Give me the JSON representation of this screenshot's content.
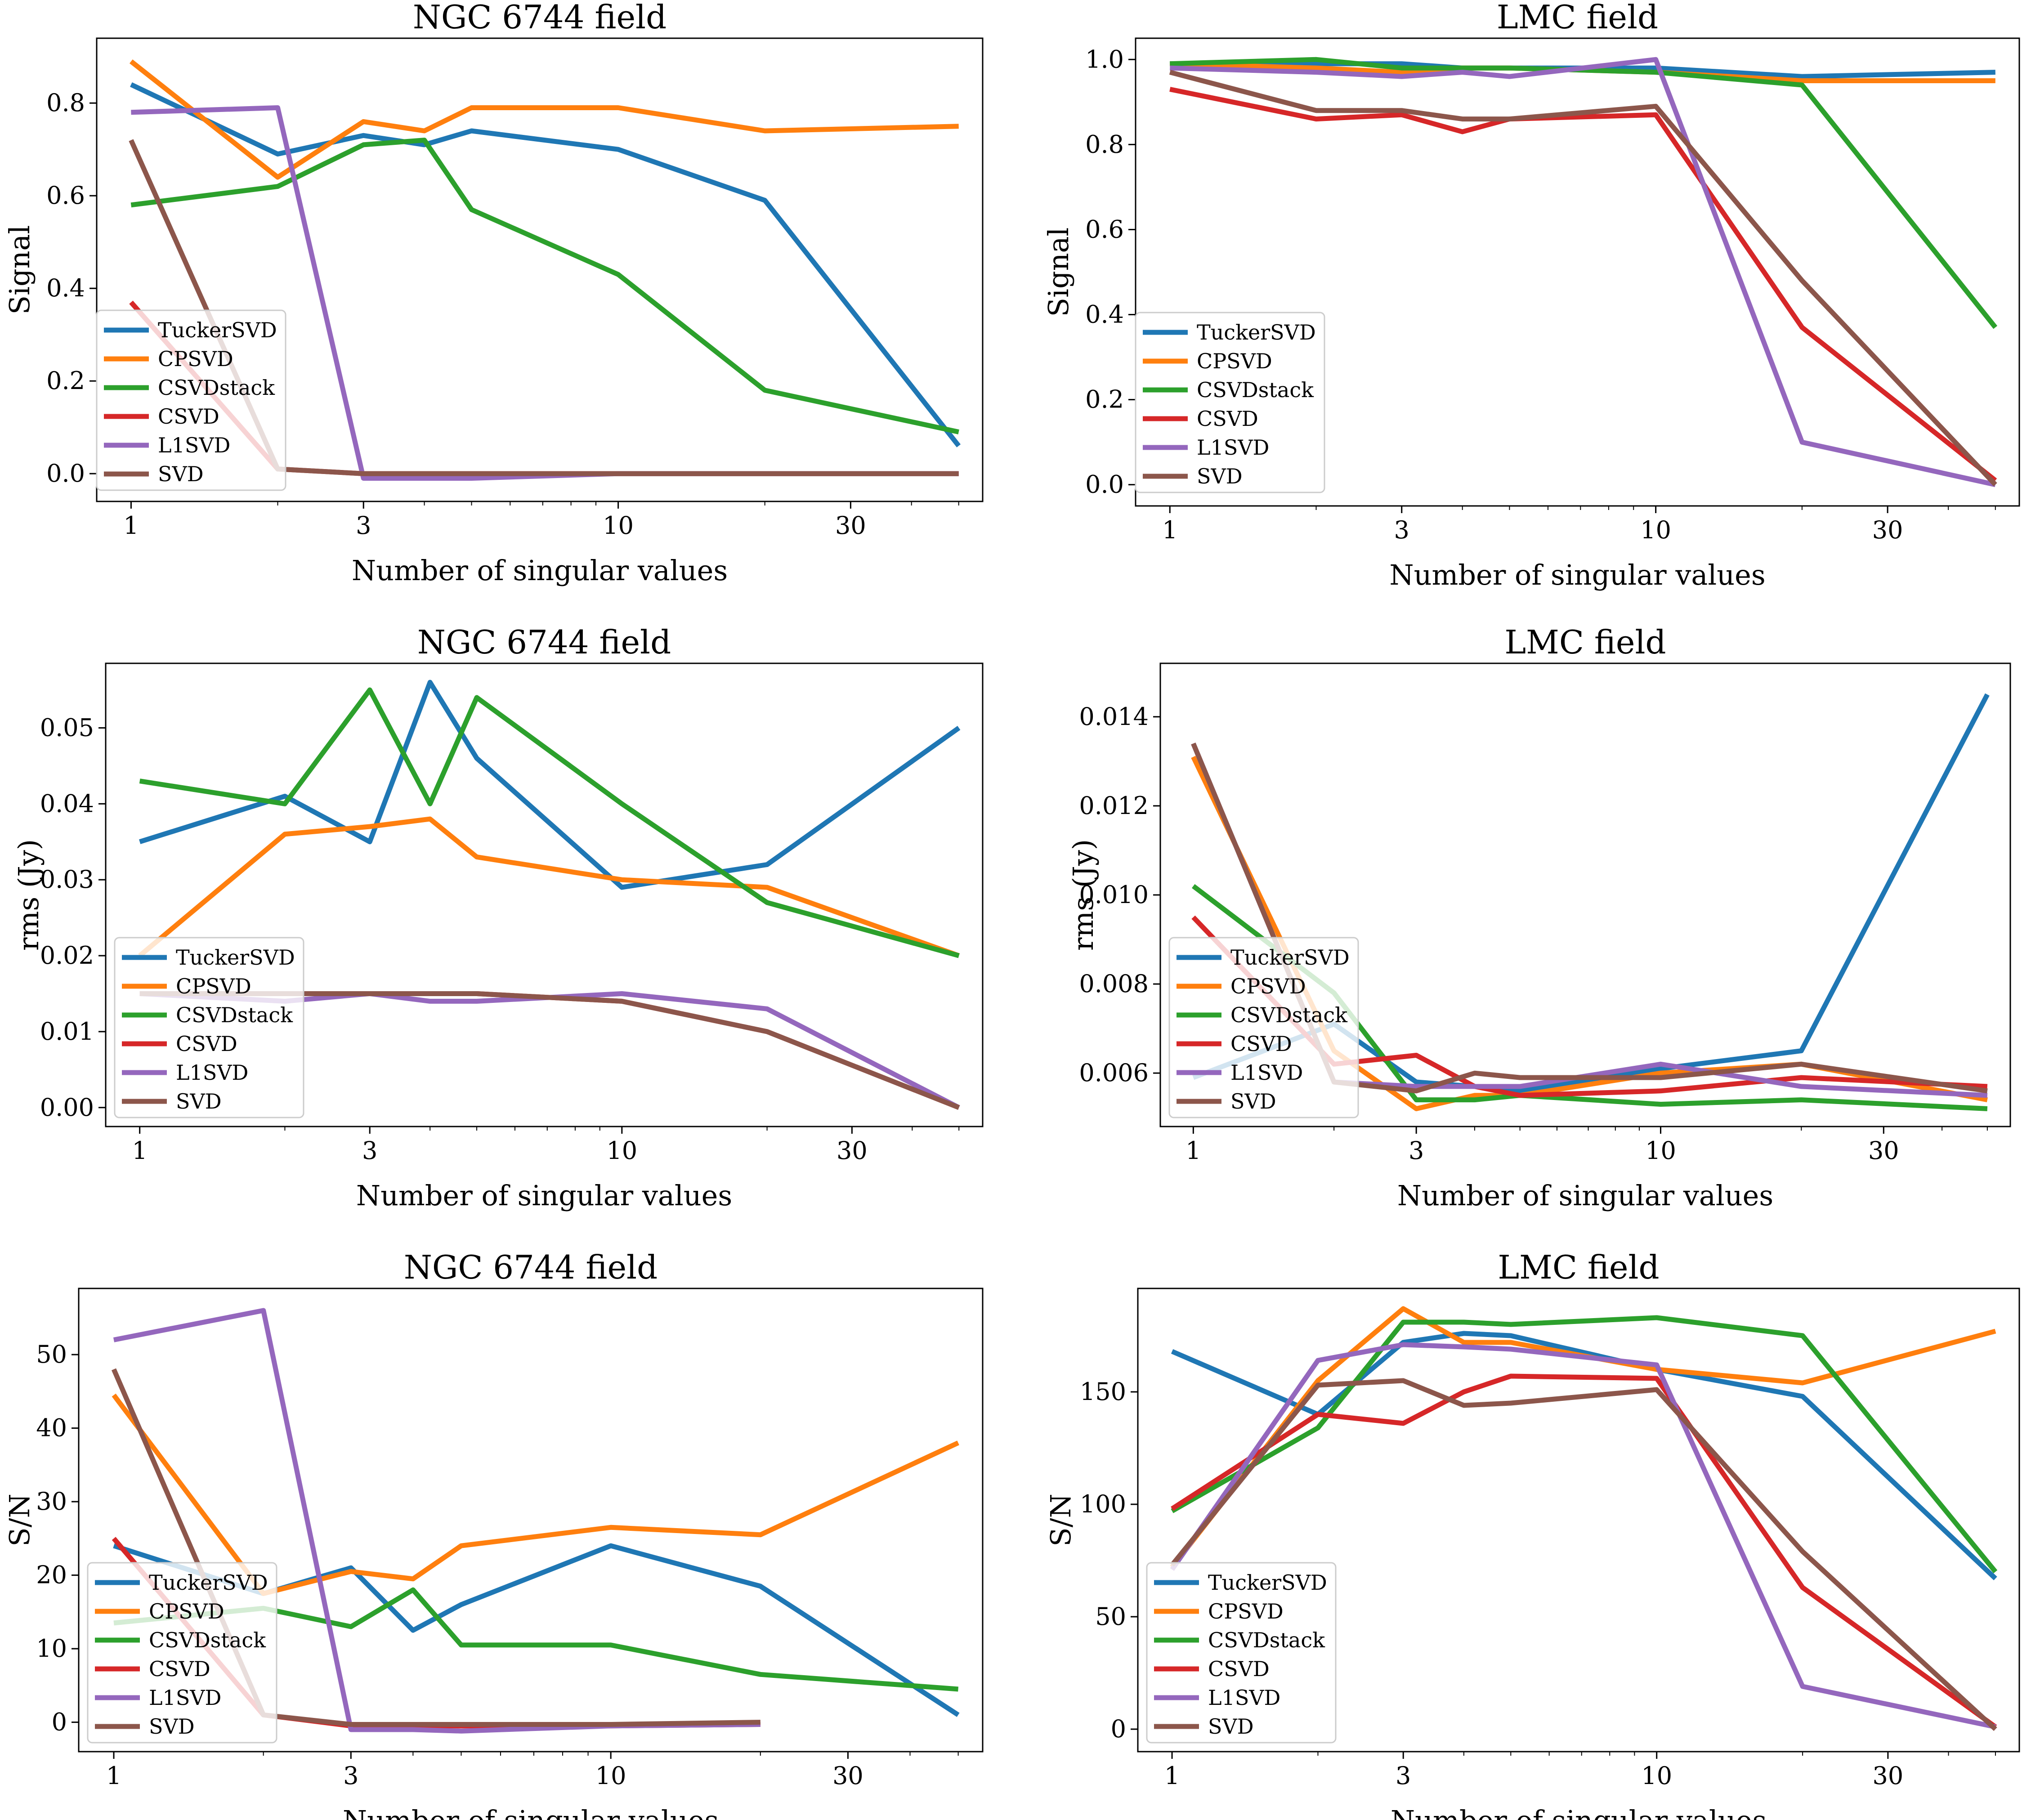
{
  "colors": {
    "TuckerSVD": "#1f77b4",
    "CPSVD": "#ff7f0e",
    "CSVDstack": "#2ca02c",
    "CSVD": "#d62728",
    "L1SVD": "#9467bd",
    "SVD": "#8c564b"
  },
  "chart_data": [
    {
      "type": "line",
      "title": "NGC 6744 field",
      "xlabel": "Number of singular values",
      "ylabel": "Signal",
      "xscale": "log",
      "xticks": [
        "1",
        "3",
        "10",
        "30"
      ],
      "yticks": [
        "0.0",
        "0.2",
        "0.4",
        "0.6",
        "0.8"
      ],
      "xlim": [
        0.85,
        56
      ],
      "ylim": [
        -0.06,
        0.94
      ],
      "grid": false,
      "legend": "lower-left",
      "x": [
        1,
        2,
        3,
        4,
        5,
        10,
        20,
        50
      ],
      "series": [
        {
          "name": "TuckerSVD",
          "values": [
            0.84,
            0.69,
            0.73,
            0.71,
            0.74,
            0.7,
            0.59,
            0.06
          ]
        },
        {
          "name": "CPSVD",
          "values": [
            0.89,
            0.64,
            0.76,
            0.74,
            0.79,
            0.79,
            0.74,
            0.75
          ]
        },
        {
          "name": "CSVDstack",
          "values": [
            0.58,
            0.62,
            0.71,
            0.72,
            0.57,
            0.43,
            0.18,
            0.09
          ]
        },
        {
          "name": "CSVD",
          "values": [
            0.37,
            0.01,
            0.0,
            0.0,
            0.0,
            0.0,
            0.0,
            0.0
          ]
        },
        {
          "name": "L1SVD",
          "values": [
            0.78,
            0.79,
            -0.01,
            -0.01,
            -0.01,
            0.0,
            0.0,
            0.0
          ]
        },
        {
          "name": "SVD",
          "values": [
            0.72,
            0.01,
            0.0,
            0.0,
            0.0,
            0.0,
            0.0,
            0.0
          ]
        }
      ]
    },
    {
      "type": "line",
      "title": "LMC field",
      "xlabel": "Number of singular values",
      "ylabel": "Signal",
      "xscale": "log",
      "xticks": [
        "1",
        "3",
        "10",
        "30"
      ],
      "yticks": [
        "0.0",
        "0.2",
        "0.4",
        "0.6",
        "0.8",
        "1.0"
      ],
      "xlim": [
        0.85,
        56
      ],
      "ylim": [
        -0.05,
        1.05
      ],
      "grid": false,
      "legend": "lower-left",
      "x": [
        1,
        2,
        3,
        4,
        5,
        10,
        20,
        50
      ],
      "series": [
        {
          "name": "TuckerSVD",
          "values": [
            0.99,
            0.99,
            0.99,
            0.98,
            0.98,
            0.98,
            0.96,
            0.97
          ]
        },
        {
          "name": "CPSVD",
          "values": [
            0.99,
            0.98,
            0.97,
            0.98,
            0.98,
            0.97,
            0.95,
            0.95
          ]
        },
        {
          "name": "CSVDstack",
          "values": [
            0.99,
            1.0,
            0.98,
            0.98,
            0.98,
            0.97,
            0.94,
            0.37
          ]
        },
        {
          "name": "CSVD",
          "values": [
            0.93,
            0.86,
            0.87,
            0.83,
            0.86,
            0.87,
            0.37,
            0.01
          ]
        },
        {
          "name": "L1SVD",
          "values": [
            0.98,
            0.97,
            0.96,
            0.97,
            0.96,
            1.0,
            0.1,
            0.0
          ]
        },
        {
          "name": "SVD",
          "values": [
            0.97,
            0.88,
            0.88,
            0.86,
            0.86,
            0.89,
            0.48,
            0.0
          ]
        }
      ]
    },
    {
      "type": "line",
      "title": "NGC 6744 field",
      "xlabel": "Number of singular values",
      "ylabel": "rms (Jy)",
      "xscale": "log",
      "xticks": [
        "1",
        "3",
        "10",
        "30"
      ],
      "yticks": [
        "0.00",
        "0.01",
        "0.02",
        "0.03",
        "0.04",
        "0.05"
      ],
      "xlim": [
        0.85,
        56
      ],
      "ylim": [
        -0.0025,
        0.0585
      ],
      "grid": false,
      "legend": "lower-left",
      "x": [
        1,
        2,
        3,
        4,
        5,
        10,
        20,
        50
      ],
      "series": [
        {
          "name": "TuckerSVD",
          "values": [
            0.035,
            0.041,
            0.035,
            0.056,
            0.046,
            0.029,
            0.032,
            0.05
          ]
        },
        {
          "name": "CPSVD",
          "values": [
            0.02,
            0.036,
            0.037,
            0.038,
            0.033,
            0.03,
            0.029,
            0.02
          ]
        },
        {
          "name": "CSVDstack",
          "values": [
            0.043,
            0.04,
            0.055,
            0.04,
            0.054,
            0.04,
            0.027,
            0.02
          ]
        },
        {
          "name": "CSVD",
          "values": [
            0.015,
            0.015,
            0.015,
            0.015,
            0.015,
            0.014,
            0.01,
            0.0
          ]
        },
        {
          "name": "L1SVD",
          "values": [
            0.015,
            0.014,
            0.015,
            0.014,
            0.014,
            0.015,
            0.013,
            0.0
          ]
        },
        {
          "name": "SVD",
          "values": [
            0.015,
            0.015,
            0.015,
            0.015,
            0.015,
            0.014,
            0.01,
            0.0
          ]
        }
      ]
    },
    {
      "type": "line",
      "title": "LMC field",
      "xlabel": "Number of singular values",
      "ylabel": "rms (Jy)",
      "xscale": "log",
      "xticks": [
        "1",
        "3",
        "10",
        "30"
      ],
      "yticks": [
        "0.006",
        "0.008",
        "0.010",
        "0.012",
        "0.014"
      ],
      "xlim": [
        0.85,
        56
      ],
      "ylim": [
        0.0048,
        0.0152
      ],
      "grid": false,
      "legend": "lower-left",
      "x": [
        1,
        2,
        3,
        4,
        5,
        10,
        20,
        50
      ],
      "series": [
        {
          "name": "TuckerSVD",
          "values": [
            0.0059,
            0.0071,
            0.0058,
            0.0057,
            0.0056,
            0.0061,
            0.0065,
            0.0145
          ]
        },
        {
          "name": "CPSVD",
          "values": [
            0.0131,
            0.0065,
            0.0052,
            0.0055,
            0.0055,
            0.006,
            0.0062,
            0.0054
          ]
        },
        {
          "name": "CSVDstack",
          "values": [
            0.0102,
            0.0078,
            0.0054,
            0.0054,
            0.0055,
            0.0053,
            0.0054,
            0.0052
          ]
        },
        {
          "name": "CSVD",
          "values": [
            0.0095,
            0.0062,
            0.0064,
            0.0057,
            0.0055,
            0.0056,
            0.0059,
            0.0057
          ]
        },
        {
          "name": "L1SVD",
          "values": [
            0.0134,
            0.0058,
            0.0057,
            0.0057,
            0.0057,
            0.0062,
            0.0057,
            0.0055
          ]
        },
        {
          "name": "SVD",
          "values": [
            0.0134,
            0.0058,
            0.0056,
            0.006,
            0.0059,
            0.0059,
            0.0062,
            0.0056
          ]
        }
      ]
    },
    {
      "type": "line",
      "title": "NGC 6744 field",
      "xlabel": "Number of singular values",
      "ylabel": "S/N",
      "xscale": "log",
      "xticks": [
        "1",
        "3",
        "10",
        "30"
      ],
      "yticks": [
        "0",
        "10",
        "20",
        "30",
        "40",
        "50"
      ],
      "xlim": [
        0.85,
        56
      ],
      "ylim": [
        -4,
        59
      ],
      "grid": false,
      "legend": "lower-left",
      "x": [
        1,
        2,
        3,
        4,
        5,
        10,
        20,
        50
      ],
      "series": [
        {
          "name": "TuckerSVD",
          "values": [
            24,
            17.5,
            21,
            12.5,
            16,
            24,
            18.5,
            1
          ]
        },
        {
          "name": "CPSVD",
          "values": [
            44.5,
            17.5,
            20.5,
            19.5,
            24,
            26.5,
            25.5,
            38
          ]
        },
        {
          "name": "CSVDstack",
          "values": [
            13.5,
            15.5,
            13,
            18,
            10.5,
            10.5,
            6.5,
            4.5
          ]
        },
        {
          "name": "CSVD",
          "values": [
            25,
            1,
            -0.5,
            -0.5,
            -0.5,
            -0.5,
            -0.3,
            null
          ]
        },
        {
          "name": "L1SVD",
          "values": [
            52,
            56,
            -1,
            -1,
            -1.2,
            -0.5,
            -0.3,
            null
          ]
        },
        {
          "name": "SVD",
          "values": [
            48,
            1,
            -0.3,
            -0.3,
            -0.3,
            -0.3,
            0,
            null
          ]
        }
      ]
    },
    {
      "type": "line",
      "title": "LMC field",
      "xlabel": "Number of singular values",
      "ylabel": "S/N",
      "xscale": "log",
      "xticks": [
        "1",
        "3",
        "10",
        "30"
      ],
      "yticks": [
        "0",
        "50",
        "100",
        "150"
      ],
      "xlim": [
        0.85,
        56
      ],
      "ylim": [
        -10,
        196
      ],
      "grid": false,
      "legend": "lower-left",
      "x": [
        1,
        2,
        3,
        4,
        5,
        10,
        20,
        50
      ],
      "series": [
        {
          "name": "TuckerSVD",
          "values": [
            168,
            140,
            172,
            176,
            175,
            160,
            148,
            67
          ]
        },
        {
          "name": "CPSVD",
          "values": [
            72,
            155,
            187,
            172,
            172,
            160,
            154,
            177
          ]
        },
        {
          "name": "CSVDstack",
          "values": [
            97,
            134,
            181,
            181,
            180,
            183,
            175,
            70
          ]
        },
        {
          "name": "CSVD",
          "values": [
            98,
            140,
            136,
            150,
            157,
            156,
            63,
            1
          ]
        },
        {
          "name": "L1SVD",
          "values": [
            71,
            164,
            171,
            170,
            169,
            162,
            19,
            1
          ]
        },
        {
          "name": "SVD",
          "values": [
            73,
            153,
            155,
            144,
            145,
            151,
            79,
            0
          ]
        }
      ]
    }
  ]
}
